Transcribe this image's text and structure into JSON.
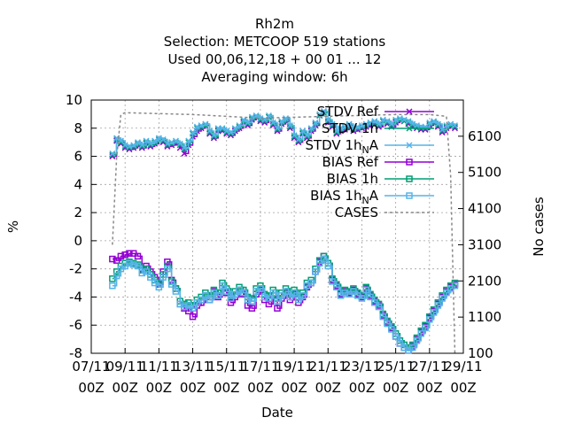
{
  "chart_data": {
    "type": "line",
    "title_lines": [
      "Rh2m",
      "Selection: METCOOP    519 stations",
      "Used  00,06,12,18 + 00 01 ... 12",
      "Averaging window:  6h"
    ],
    "xlabel": "Date",
    "ylabel": "%",
    "y2label": "No cases",
    "ylim": [
      -8,
      10
    ],
    "y2lim": [
      100,
      7100
    ],
    "xlim": [
      0,
      22
    ],
    "grid": true,
    "legend_position": "top-right",
    "yticks": [
      -8,
      -6,
      -4,
      -2,
      0,
      2,
      4,
      6,
      8,
      10
    ],
    "y2ticks": [
      100,
      1100,
      2100,
      3100,
      4100,
      5100,
      6100
    ],
    "xticks": [
      {
        "x": 0,
        "l1": "07/11",
        "l2": "00Z"
      },
      {
        "x": 2,
        "l1": "09/11",
        "l2": "00Z"
      },
      {
        "x": 4,
        "l1": "11/11",
        "l2": "00Z"
      },
      {
        "x": 6,
        "l1": "13/11",
        "l2": "00Z"
      },
      {
        "x": 8,
        "l1": "15/11",
        "l2": "00Z"
      },
      {
        "x": 10,
        "l1": "17/11",
        "l2": "00Z"
      },
      {
        "x": 12,
        "l1": "19/11",
        "l2": "00Z"
      },
      {
        "x": 14,
        "l1": "21/11",
        "l2": "00Z"
      },
      {
        "x": 16,
        "l1": "23/11",
        "l2": "00Z"
      },
      {
        "x": 18,
        "l1": "25/11",
        "l2": "00Z"
      },
      {
        "x": 20,
        "l1": "27/11",
        "l2": "00Z"
      },
      {
        "x": 22,
        "l1": "29/11",
        "l2": "00Z"
      }
    ],
    "x_days": [
      1.25,
      1.5,
      1.75,
      2.0,
      2.25,
      2.5,
      2.75,
      3.0,
      3.25,
      3.5,
      3.75,
      4.0,
      4.25,
      4.5,
      4.75,
      5.0,
      5.25,
      5.5,
      5.75,
      6.0,
      6.25,
      6.5,
      6.75,
      7.0,
      7.25,
      7.5,
      7.75,
      8.0,
      8.25,
      8.5,
      8.75,
      9.0,
      9.25,
      9.5,
      9.75,
      10.0,
      10.25,
      10.5,
      10.75,
      11.0,
      11.25,
      11.5,
      11.75,
      12.0,
      12.25,
      12.5,
      12.75,
      13.0,
      13.25,
      13.5,
      13.75,
      14.0,
      14.25,
      14.5,
      14.75,
      15.0,
      15.25,
      15.5,
      15.75,
      16.0,
      16.25,
      16.5,
      16.75,
      17.0,
      17.25,
      17.5,
      17.75,
      18.0,
      18.25,
      18.5,
      18.75,
      19.0,
      19.25,
      19.5,
      19.75,
      20.0,
      20.25,
      20.5,
      20.75,
      21.0,
      21.25,
      21.5
    ],
    "series": [
      {
        "name": "STDV Ref",
        "axis": "y1",
        "color": "#9400d3",
        "marker": "x",
        "values": [
          6.0,
          7.1,
          6.9,
          6.6,
          6.5,
          6.6,
          6.8,
          6.6,
          6.9,
          6.7,
          6.9,
          7.2,
          7.0,
          6.7,
          6.8,
          6.9,
          6.6,
          6.2,
          6.8,
          7.4,
          7.8,
          8.0,
          8.2,
          7.6,
          7.3,
          7.8,
          7.8,
          7.6,
          7.5,
          7.8,
          8.0,
          8.4,
          8.2,
          8.6,
          8.8,
          8.5,
          8.4,
          8.8,
          8.2,
          7.8,
          8.3,
          8.5,
          8.0,
          7.3,
          7.0,
          7.6,
          7.3,
          7.8,
          8.2,
          8.9,
          9.2,
          8.4,
          8.1,
          7.6,
          7.8,
          7.9,
          8.1,
          7.8,
          7.9,
          8.0,
          8.1,
          8.2,
          8.3,
          8.1,
          8.5,
          8.3,
          8.1,
          8.4,
          8.6,
          8.5,
          8.3,
          8.1,
          8.0,
          7.9,
          7.9,
          8.2,
          8.4,
          8.1,
          7.7,
          8.0,
          8.2,
          8.0
        ]
      },
      {
        "name": "STDV 1h",
        "axis": "y1",
        "color": "#009e73",
        "marker": "x",
        "values": [
          6.1,
          7.2,
          7.0,
          6.7,
          6.6,
          6.7,
          6.9,
          6.7,
          7.0,
          6.8,
          7.0,
          7.2,
          7.1,
          6.8,
          6.9,
          7.0,
          6.8,
          6.5,
          7.0,
          7.6,
          8.0,
          8.1,
          8.2,
          7.7,
          7.4,
          7.9,
          7.9,
          7.7,
          7.6,
          7.9,
          8.1,
          8.5,
          8.3,
          8.7,
          8.8,
          8.6,
          8.5,
          8.8,
          8.3,
          7.9,
          8.4,
          8.6,
          8.1,
          7.4,
          7.1,
          7.7,
          7.4,
          7.9,
          8.3,
          8.9,
          9.1,
          8.5,
          8.2,
          7.7,
          7.9,
          8.0,
          8.2,
          7.9,
          8.0,
          8.1,
          8.2,
          8.3,
          8.4,
          8.2,
          8.5,
          8.4,
          8.2,
          8.5,
          8.6,
          8.5,
          8.4,
          8.2,
          8.1,
          8.0,
          8.0,
          8.3,
          8.4,
          8.2,
          7.8,
          8.1,
          8.2,
          8.1
        ]
      },
      {
        "name": "STDV 1h_NA",
        "axis": "y1",
        "color": "#56b4e9",
        "marker": "x",
        "values": [
          6.2,
          7.3,
          7.1,
          6.8,
          6.7,
          6.8,
          7.0,
          6.8,
          7.1,
          6.9,
          7.1,
          7.3,
          7.2,
          6.9,
          7.0,
          7.1,
          6.9,
          6.6,
          7.1,
          7.7,
          8.1,
          8.2,
          8.3,
          7.8,
          7.5,
          8.0,
          8.0,
          7.8,
          7.7,
          8.0,
          8.2,
          8.6,
          8.4,
          8.8,
          8.9,
          8.7,
          8.6,
          8.9,
          8.4,
          8.0,
          8.5,
          8.7,
          8.2,
          7.5,
          7.2,
          7.8,
          7.5,
          8.0,
          8.4,
          9.0,
          9.2,
          8.6,
          8.3,
          7.8,
          8.0,
          8.1,
          8.3,
          8.0,
          8.1,
          8.2,
          8.3,
          8.4,
          8.5,
          8.3,
          8.6,
          8.5,
          8.3,
          8.6,
          8.7,
          8.6,
          8.5,
          8.3,
          8.2,
          8.1,
          8.1,
          8.4,
          8.5,
          8.3,
          7.9,
          8.2,
          8.3,
          8.2
        ]
      },
      {
        "name": "BIAS Ref",
        "axis": "y1",
        "color": "#9400d3",
        "marker": "square",
        "values": [
          -1.3,
          -1.4,
          -1.1,
          -1.0,
          -0.9,
          -0.9,
          -1.1,
          -2.0,
          -1.8,
          -2.2,
          -2.6,
          -3.1,
          -2.2,
          -1.5,
          -2.8,
          -3.4,
          -4.5,
          -4.8,
          -5.0,
          -5.4,
          -4.6,
          -4.4,
          -3.9,
          -4.2,
          -3.6,
          -4.0,
          -3.2,
          -3.7,
          -4.4,
          -4.0,
          -3.5,
          -3.8,
          -4.6,
          -4.8,
          -3.8,
          -3.5,
          -4.2,
          -4.5,
          -3.9,
          -4.8,
          -4.1,
          -3.7,
          -4.2,
          -3.8,
          -4.4,
          -4.0,
          -3.3,
          -3.0,
          -2.2,
          -1.5,
          -1.1,
          -1.6,
          -2.8,
          -3.2,
          -3.8,
          -3.6,
          -3.7,
          -3.5,
          -3.8,
          -4.0,
          -3.4,
          -3.9,
          -4.3,
          -4.6,
          -5.3,
          -5.8,
          -6.2,
          -6.8,
          -7.3,
          -7.6,
          -7.8,
          -7.5,
          -7.0,
          -6.5,
          -6.1,
          -5.5,
          -5.0,
          -4.5,
          -4.0,
          -3.6,
          -3.3,
          -3.1
        ]
      },
      {
        "name": "BIAS 1h",
        "axis": "y1",
        "color": "#009e73",
        "marker": "square",
        "values": [
          -2.7,
          -2.2,
          -1.8,
          -1.6,
          -1.5,
          -1.6,
          -1.7,
          -2.1,
          -2.0,
          -2.4,
          -2.8,
          -3.0,
          -2.4,
          -1.8,
          -2.9,
          -3.4,
          -4.3,
          -4.5,
          -4.4,
          -4.6,
          -4.2,
          -4.0,
          -3.7,
          -4.0,
          -3.5,
          -3.7,
          -3.0,
          -3.4,
          -3.9,
          -3.6,
          -3.3,
          -3.5,
          -4.0,
          -4.1,
          -3.4,
          -3.2,
          -3.8,
          -3.9,
          -3.5,
          -4.1,
          -3.7,
          -3.4,
          -3.8,
          -3.5,
          -4.0,
          -3.7,
          -3.0,
          -2.8,
          -2.0,
          -1.4,
          -1.1,
          -1.6,
          -2.7,
          -3.1,
          -3.7,
          -3.5,
          -3.6,
          -3.4,
          -3.7,
          -3.9,
          -3.3,
          -3.8,
          -4.2,
          -4.5,
          -5.2,
          -5.7,
          -6.1,
          -6.6,
          -7.1,
          -7.4,
          -7.6,
          -7.4,
          -6.9,
          -6.4,
          -6.0,
          -5.4,
          -4.9,
          -4.4,
          -3.9,
          -3.5,
          -3.2,
          -3.0
        ]
      },
      {
        "name": "BIAS 1h_NA",
        "axis": "y1",
        "color": "#56b4e9",
        "marker": "square",
        "values": [
          -3.2,
          -2.5,
          -2.0,
          -1.8,
          -1.6,
          -1.7,
          -1.8,
          -2.3,
          -2.2,
          -2.6,
          -3.0,
          -3.3,
          -2.6,
          -2.0,
          -3.1,
          -3.6,
          -4.5,
          -4.7,
          -4.6,
          -4.8,
          -4.4,
          -4.2,
          -3.9,
          -4.2,
          -3.7,
          -3.9,
          -3.2,
          -3.6,
          -4.1,
          -3.8,
          -3.5,
          -3.7,
          -4.2,
          -4.3,
          -3.6,
          -3.4,
          -4.0,
          -4.1,
          -3.7,
          -4.3,
          -3.9,
          -3.6,
          -4.0,
          -3.7,
          -4.2,
          -3.9,
          -3.2,
          -3.0,
          -2.2,
          -1.6,
          -1.3,
          -1.8,
          -2.9,
          -3.3,
          -3.9,
          -3.7,
          -3.8,
          -3.6,
          -3.9,
          -4.1,
          -3.5,
          -4.0,
          -4.4,
          -4.7,
          -5.4,
          -5.9,
          -6.3,
          -6.8,
          -7.3,
          -7.6,
          -7.8,
          -7.6,
          -7.1,
          -6.6,
          -6.2,
          -5.6,
          -5.1,
          -4.6,
          -4.1,
          -3.7,
          -3.4,
          -3.2
        ]
      },
      {
        "name": "CASES",
        "axis": "y2",
        "color": "#888888",
        "marker": "none",
        "x": [
          1.25,
          1.5,
          1.75,
          2.0,
          6.0,
          10.0,
          14.0,
          18.0,
          20.0,
          21.0,
          21.25,
          21.5
        ],
        "values": [
          3100,
          5500,
          6700,
          6750,
          6700,
          6600,
          6650,
          6700,
          6700,
          6650,
          5000,
          100
        ]
      }
    ]
  }
}
